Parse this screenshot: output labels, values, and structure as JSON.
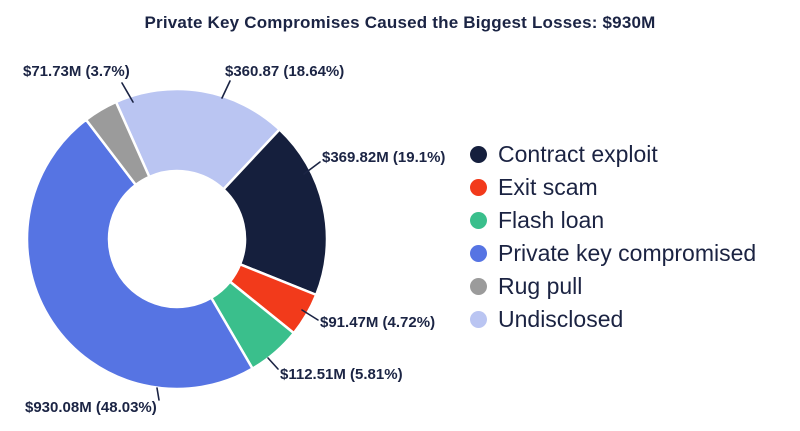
{
  "chart_data": {
    "type": "pie",
    "donut": true,
    "title": "Private Key Compromises Caused the Biggest Losses: $930M",
    "units": "USD millions",
    "total_highlight": "$930M",
    "segments": [
      {
        "label": "Contract exploit",
        "amount_m": 369.82,
        "pct": 19.1,
        "callout": "$369.82M (19.1%)",
        "color": "#151f3d"
      },
      {
        "label": "Exit scam",
        "amount_m": 91.47,
        "pct": 4.72,
        "callout": "$91.47M (4.72%)",
        "color": "#f23a1b"
      },
      {
        "label": "Flash loan",
        "amount_m": 112.51,
        "pct": 5.81,
        "callout": "$112.51M (5.81%)",
        "color": "#3abf8c"
      },
      {
        "label": "Private key compromised",
        "amount_m": 930.08,
        "pct": 48.03,
        "callout": "$930.08M (48.03%)",
        "color": "#5674e3"
      },
      {
        "label": "Rug pull",
        "amount_m": 71.73,
        "pct": 3.7,
        "callout": "$71.73M (3.7%)",
        "color": "#9b9b9b"
      },
      {
        "label": "Undisclosed",
        "amount_m": 360.87,
        "pct": 18.64,
        "callout": "$360.87 (18.64%)",
        "color": "#bac5f2"
      }
    ],
    "layout": {
      "legend_position": "right",
      "hole_ratio": 0.45,
      "rotation_deg": -24,
      "clockwise_order": [
        "Undisclosed",
        "Contract exploit",
        "Exit scam",
        "Flash loan",
        "Private key compromised",
        "Rug pull"
      ],
      "slice_gap_color": "#ffffff",
      "text_color": "#1b2444"
    }
  }
}
